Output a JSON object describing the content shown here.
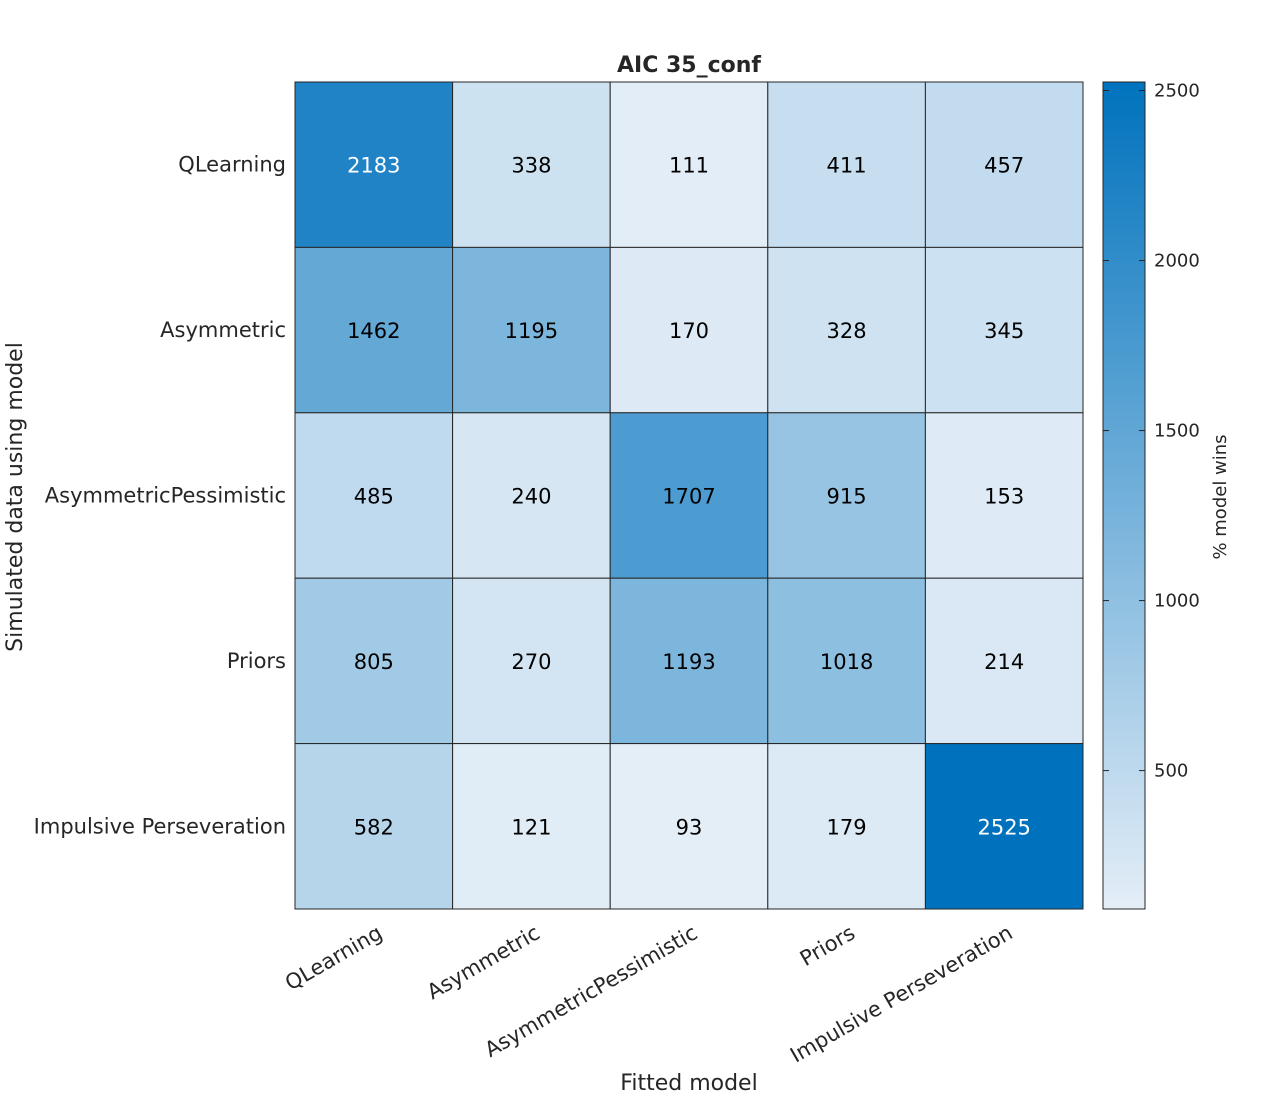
{
  "chart_data": {
    "type": "heatmap",
    "title": "AIC 35_conf",
    "xlabel": "Fitted model",
    "ylabel": "Simulated data using model",
    "x_categories": [
      "QLearning",
      "Asymmetric",
      "AsymmetricPessimistic",
      "Priors",
      "Impulsive Perseveration"
    ],
    "y_categories": [
      "QLearning",
      "Asymmetric",
      "AsymmetricPessimistic",
      "Priors",
      "Impulsive Perseveration"
    ],
    "values": [
      [
        2183,
        338,
        111,
        411,
        457
      ],
      [
        1462,
        1195,
        170,
        328,
        345
      ],
      [
        485,
        240,
        1707,
        915,
        153
      ],
      [
        805,
        270,
        1193,
        1018,
        214
      ],
      [
        582,
        121,
        93,
        179,
        2525
      ]
    ],
    "colorbar": {
      "label": "% model wins",
      "ticks": [
        500,
        1000,
        1500,
        2000,
        2500
      ],
      "range": [
        93,
        2525
      ],
      "color_low": "#e4eef7",
      "color_high": "#0072bd"
    }
  }
}
